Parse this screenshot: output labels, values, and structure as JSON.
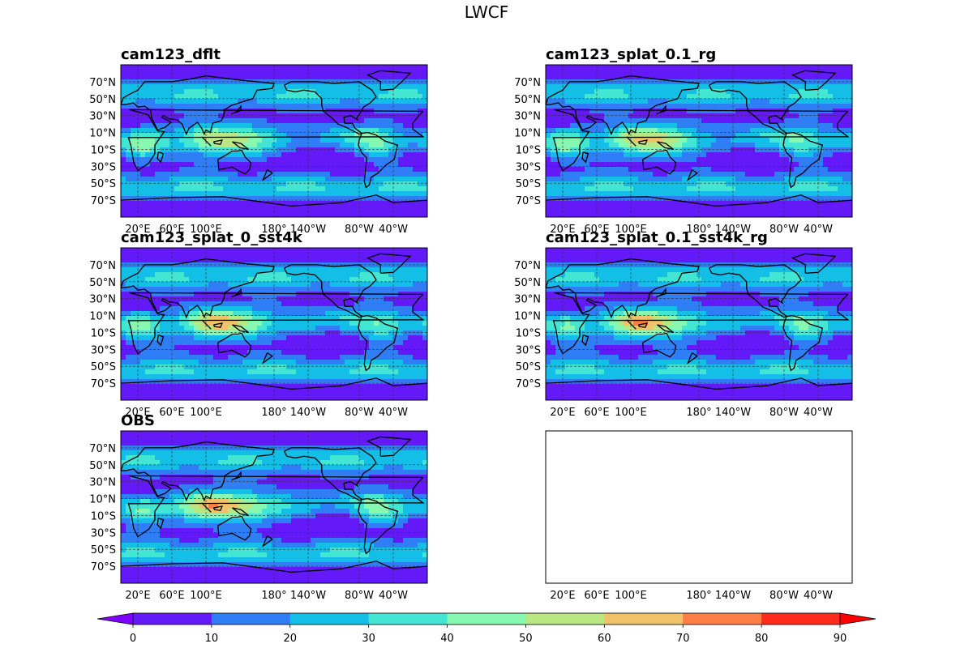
{
  "figure": {
    "suptitle": "LWCF"
  },
  "chart_data": {
    "type": "contour-map",
    "title": "LWCF",
    "projection": "PlateCarree, 0–360° longitude",
    "lat_ticks": [
      "70°N",
      "50°N",
      "30°N",
      "10°N",
      "10°S",
      "30°S",
      "50°S",
      "70°S"
    ],
    "lat_values": [
      70,
      50,
      30,
      10,
      -10,
      -30,
      -50,
      -70
    ],
    "lon_ticks": [
      "20°E",
      "60°E",
      "100°E",
      "180°",
      "140°W",
      "80°W",
      "40°W"
    ],
    "lon_values": [
      20,
      60,
      100,
      180,
      220,
      280,
      320
    ],
    "panels": [
      {
        "title": "cam123_dflt",
        "has_data": true
      },
      {
        "title": "cam123_splat_0.1_rg",
        "has_data": true
      },
      {
        "title": "cam123_splat_0_sst4k",
        "has_data": true
      },
      {
        "title": "cam123_splat_0.1_sst4k_rg",
        "has_data": true
      },
      {
        "title": "OBS",
        "has_data": true
      },
      {
        "title": "",
        "has_data": false
      }
    ],
    "colorbar": {
      "levels": [
        0,
        10,
        20,
        30,
        40,
        50,
        60,
        70,
        80,
        90
      ],
      "tick_labels": [
        "0",
        "10",
        "20",
        "30",
        "40",
        "50",
        "60",
        "70",
        "80",
        "90"
      ],
      "colors": [
        "#6419f9",
        "#2f7ef6",
        "#13bfe6",
        "#42e6d3",
        "#86f8b0",
        "#b9e784",
        "#f1c26a",
        "#fd7f47",
        "#ff2b1c"
      ],
      "under_color": "#7f00ff",
      "over_color": "#ff0000",
      "extend": "both"
    }
  }
}
